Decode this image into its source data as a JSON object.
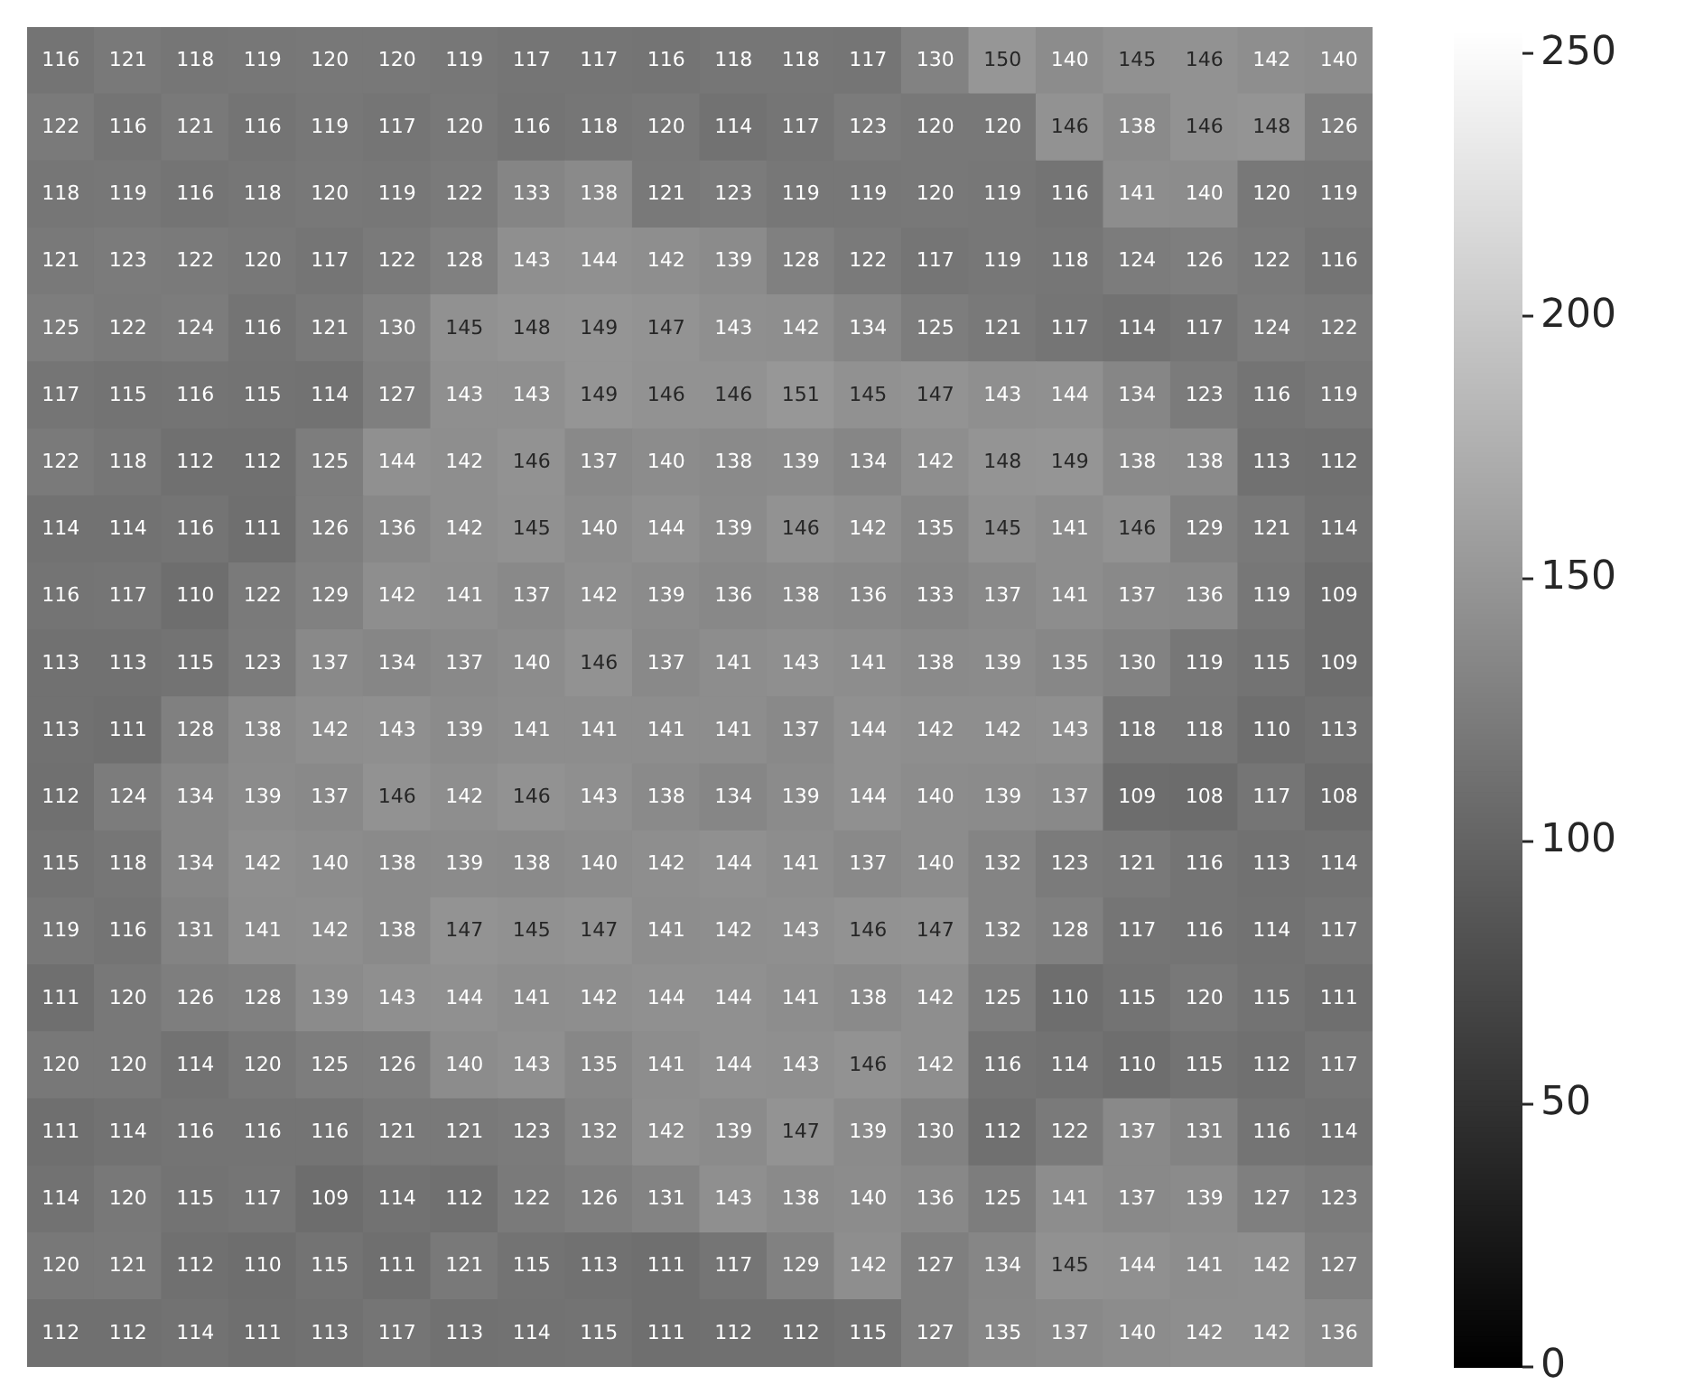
{
  "chart_data": {
    "type": "heatmap",
    "categories": [
      null,
      null,
      null,
      null,
      null,
      null,
      null,
      null,
      null,
      null,
      null,
      null,
      null,
      null,
      null,
      null,
      null,
      null,
      null,
      null
    ],
    "y_categories": [
      null,
      null,
      null,
      null,
      null,
      null,
      null,
      null,
      null,
      null,
      null,
      null,
      null,
      null,
      null,
      null,
      null,
      null,
      null,
      null
    ],
    "cells": [
      [
        116,
        121,
        118,
        119,
        120,
        120,
        119,
        117,
        117,
        116,
        118,
        118,
        117,
        130,
        150,
        140,
        145,
        146,
        142,
        140
      ],
      [
        122,
        116,
        121,
        116,
        119,
        117,
        120,
        116,
        118,
        120,
        114,
        117,
        123,
        120,
        120,
        146,
        138,
        146,
        148,
        126
      ],
      [
        118,
        119,
        116,
        118,
        120,
        119,
        122,
        133,
        138,
        121,
        123,
        119,
        119,
        120,
        119,
        116,
        141,
        140,
        120,
        119
      ],
      [
        121,
        123,
        122,
        120,
        117,
        122,
        128,
        143,
        144,
        142,
        139,
        128,
        122,
        117,
        119,
        118,
        124,
        126,
        122,
        116
      ],
      [
        125,
        122,
        124,
        116,
        121,
        130,
        145,
        148,
        149,
        147,
        143,
        142,
        134,
        125,
        121,
        117,
        114,
        117,
        124,
        122
      ],
      [
        117,
        115,
        116,
        115,
        114,
        127,
        143,
        143,
        149,
        146,
        146,
        151,
        145,
        147,
        143,
        144,
        134,
        123,
        116,
        119
      ],
      [
        122,
        118,
        112,
        112,
        125,
        144,
        142,
        146,
        137,
        140,
        138,
        139,
        134,
        142,
        148,
        149,
        138,
        138,
        113,
        112
      ],
      [
        114,
        114,
        116,
        111,
        126,
        136,
        142,
        145,
        140,
        144,
        139,
        146,
        142,
        135,
        145,
        141,
        146,
        129,
        121,
        114
      ],
      [
        116,
        117,
        110,
        122,
        129,
        142,
        141,
        137,
        142,
        139,
        136,
        138,
        136,
        133,
        137,
        141,
        137,
        136,
        119,
        109
      ],
      [
        113,
        113,
        115,
        123,
        137,
        134,
        137,
        140,
        146,
        137,
        141,
        143,
        141,
        138,
        139,
        135,
        130,
        119,
        115,
        109
      ],
      [
        113,
        111,
        128,
        138,
        142,
        143,
        139,
        141,
        141,
        141,
        141,
        137,
        144,
        142,
        142,
        143,
        118,
        118,
        110,
        113
      ],
      [
        112,
        124,
        134,
        139,
        137,
        146,
        142,
        146,
        143,
        138,
        134,
        139,
        144,
        140,
        139,
        137,
        109,
        108,
        117,
        108
      ],
      [
        115,
        118,
        134,
        142,
        140,
        138,
        139,
        138,
        140,
        142,
        144,
        141,
        137,
        140,
        132,
        123,
        121,
        116,
        113,
        114
      ],
      [
        119,
        116,
        131,
        141,
        142,
        138,
        147,
        145,
        147,
        141,
        142,
        143,
        146,
        147,
        132,
        128,
        117,
        116,
        114,
        117
      ],
      [
        111,
        120,
        126,
        128,
        139,
        143,
        144,
        141,
        142,
        144,
        144,
        141,
        138,
        142,
        125,
        110,
        115,
        120,
        115,
        111
      ],
      [
        120,
        120,
        114,
        120,
        125,
        126,
        140,
        143,
        135,
        141,
        144,
        143,
        146,
        142,
        116,
        114,
        110,
        115,
        112,
        117
      ],
      [
        111,
        114,
        116,
        116,
        116,
        121,
        121,
        123,
        132,
        142,
        139,
        147,
        139,
        130,
        112,
        122,
        137,
        131,
        116,
        114
      ],
      [
        114,
        120,
        115,
        117,
        109,
        114,
        112,
        122,
        126,
        131,
        143,
        138,
        140,
        136,
        125,
        141,
        137,
        139,
        127,
        123
      ],
      [
        120,
        121,
        112,
        110,
        115,
        111,
        121,
        115,
        113,
        111,
        117,
        129,
        142,
        127,
        134,
        145,
        144,
        141,
        142,
        127
      ],
      [
        112,
        112,
        114,
        111,
        113,
        117,
        113,
        114,
        115,
        111,
        112,
        112,
        115,
        127,
        135,
        137,
        140,
        142,
        142,
        136
      ]
    ],
    "clim": [
      0,
      255
    ],
    "cticks": [
      0,
      50,
      100,
      150,
      200,
      250
    ],
    "tick_labels": false,
    "data_labels": true
  }
}
